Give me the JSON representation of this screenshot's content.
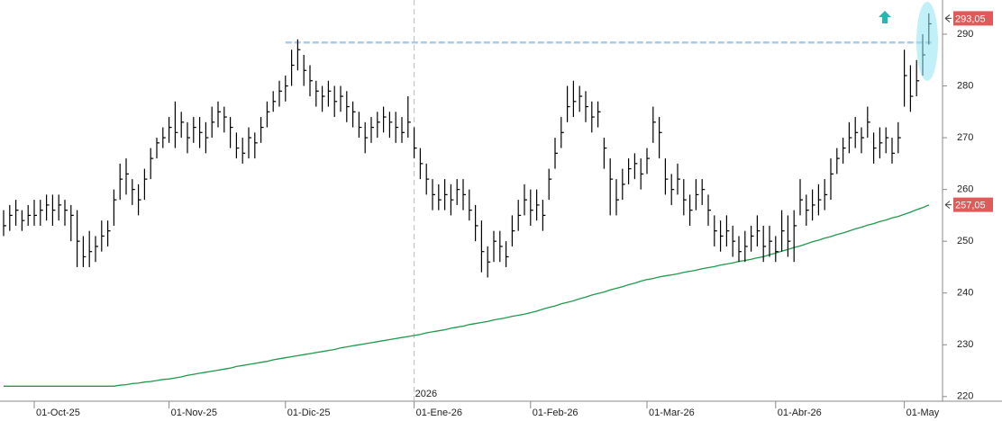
{
  "chart_data": {
    "type": "ohlc",
    "categories": [
      null,
      null,
      null,
      null,
      null,
      "01-Oct-25",
      null,
      null,
      null,
      null,
      null,
      null,
      null,
      null,
      null,
      null,
      null,
      null,
      null,
      null,
      null,
      null,
      null,
      null,
      null,
      null,
      null,
      "01-Nov-25",
      null,
      null,
      null,
      null,
      null,
      null,
      null,
      null,
      null,
      null,
      null,
      null,
      null,
      null,
      null,
      null,
      null,
      null,
      "01-Dic-25",
      null,
      null,
      null,
      null,
      null,
      null,
      null,
      null,
      null,
      null,
      null,
      null,
      null,
      null,
      null,
      null,
      null,
      null,
      null,
      null,
      "01-Ene-26",
      null,
      null,
      null,
      null,
      null,
      null,
      null,
      null,
      null,
      null,
      null,
      null,
      null,
      null,
      null,
      null,
      null,
      null,
      "01-Feb-26",
      null,
      null,
      null,
      null,
      null,
      null,
      null,
      null,
      null,
      null,
      null,
      null,
      null,
      null,
      null,
      null,
      null,
      null,
      "01-Mar-26",
      null,
      null,
      null,
      null,
      null,
      null,
      null,
      null,
      null,
      null,
      null,
      null,
      null,
      null,
      null,
      null,
      null,
      null,
      null,
      null,
      "01-Abr-26",
      null,
      null,
      null,
      null,
      null,
      null,
      null,
      null,
      null,
      null,
      null,
      null,
      null,
      null,
      null,
      null,
      null,
      null,
      null,
      null,
      "01-May",
      null,
      null,
      null,
      null
    ],
    "ohlc": {
      "color": "#000000",
      "high": [
        256,
        257,
        258,
        256,
        257,
        258,
        258,
        259,
        259,
        259,
        258,
        257,
        256,
        251,
        252,
        251,
        254,
        254,
        260,
        265,
        266,
        262,
        261,
        264,
        268,
        270,
        272,
        274,
        277,
        275,
        273,
        274,
        274,
        273,
        276,
        277,
        276,
        274,
        271,
        270,
        272,
        271,
        274,
        277,
        279,
        281,
        282,
        287,
        289,
        286,
        284,
        281,
        280,
        281,
        280,
        280,
        279,
        277,
        275,
        273,
        274,
        275,
        276,
        275,
        275,
        274,
        278,
        272,
        268,
        265,
        262,
        261,
        262,
        261,
        262,
        262,
        260,
        257,
        254,
        249,
        252,
        252,
        250,
        255,
        258,
        261,
        260,
        260,
        258,
        264,
        270,
        274,
        280,
        281,
        280,
        279,
        277,
        277,
        270,
        266,
        262,
        264,
        266,
        267,
        266,
        268,
        276,
        274,
        266,
        263,
        265,
        262,
        259,
        262,
        262,
        259,
        255,
        254,
        255,
        253,
        251,
        252,
        253,
        255,
        253,
        253,
        251,
        256,
        255,
        256,
        262,
        259,
        260,
        261,
        262,
        266,
        268,
        270,
        273,
        274,
        272,
        276,
        271,
        272,
        272,
        270,
        273,
        287,
        284,
        285,
        290,
        294
      ],
      "low": [
        251,
        252,
        253,
        252,
        253,
        253,
        253,
        254,
        253,
        254,
        253,
        250,
        245,
        245,
        245,
        246,
        248,
        249,
        253,
        258,
        259,
        257,
        255,
        258,
        262,
        266,
        268,
        269,
        268,
        270,
        267,
        269,
        268,
        267,
        270,
        272,
        271,
        268,
        266,
        265,
        266,
        266,
        269,
        272,
        275,
        276,
        277,
        280,
        283,
        280,
        278,
        276,
        275,
        276,
        274,
        275,
        273,
        272,
        270,
        267,
        269,
        270,
        271,
        270,
        269,
        269,
        270,
        266,
        262,
        259,
        256,
        256,
        256,
        255,
        257,
        256,
        254,
        250,
        244,
        243,
        246,
        246,
        245,
        249,
        252,
        255,
        253,
        254,
        252,
        258,
        264,
        268,
        273,
        274,
        275,
        273,
        271,
        272,
        264,
        255,
        255,
        258,
        261,
        262,
        260,
        263,
        269,
        266,
        259,
        257,
        259,
        255,
        253,
        256,
        257,
        253,
        249,
        248,
        249,
        247,
        246,
        246,
        248,
        249,
        246,
        247,
        246,
        248,
        247,
        246,
        255,
        253,
        254,
        255,
        256,
        258,
        263,
        265,
        267,
        268,
        267,
        270,
        265,
        266,
        267,
        265,
        267,
        276,
        275,
        278,
        282,
        288
      ],
      "close": [
        253,
        255,
        256,
        254,
        255,
        255,
        256,
        257,
        256,
        257,
        256,
        255,
        250,
        247,
        248,
        249,
        251,
        252,
        258,
        262,
        263,
        260,
        258,
        262,
        266,
        269,
        270,
        272,
        271,
        273,
        270,
        272,
        271,
        270,
        273,
        275,
        274,
        272,
        268,
        267,
        270,
        269,
        272,
        275,
        277,
        279,
        280,
        284,
        287,
        283,
        281,
        279,
        278,
        279,
        277,
        278,
        276,
        275,
        272,
        270,
        272,
        273,
        274,
        273,
        272,
        271,
        273,
        268,
        265,
        262,
        259,
        258,
        259,
        258,
        260,
        259,
        256,
        253,
        248,
        246,
        250,
        249,
        247,
        252,
        255,
        258,
        256,
        257,
        255,
        262,
        267,
        271,
        276,
        277,
        278,
        276,
        274,
        275,
        268,
        262,
        258,
        261,
        264,
        265,
        263,
        266,
        273,
        271,
        262,
        260,
        262,
        258,
        256,
        259,
        260,
        256,
        252,
        251,
        252,
        250,
        248,
        249,
        251,
        252,
        249,
        250,
        248,
        252,
        250,
        253,
        258,
        256,
        257,
        258,
        259,
        263,
        266,
        268,
        270,
        271,
        270,
        273,
        268,
        269,
        270,
        267,
        270,
        282,
        278,
        281,
        286,
        292
      ]
    },
    "moving_average": {
      "color": "#1f9a4c",
      "values": [
        222,
        222,
        222,
        222,
        222,
        222,
        222,
        222,
        222,
        222,
        222,
        222,
        222,
        222,
        222,
        222,
        222,
        222,
        222,
        222.2,
        222.3,
        222.5,
        222.6,
        222.8,
        222.9,
        223.1,
        223.3,
        223.4,
        223.6,
        223.8,
        224.1,
        224.3,
        224.5,
        224.7,
        224.9,
        225.1,
        225.3,
        225.5,
        225.8,
        226,
        226.2,
        226.4,
        226.6,
        226.8,
        227.1,
        227.3,
        227.5,
        227.7,
        227.9,
        228.1,
        228.3,
        228.5,
        228.7,
        228.9,
        229.1,
        229.4,
        229.6,
        229.8,
        230,
        230.2,
        230.4,
        230.6,
        230.8,
        231,
        231.2,
        231.4,
        231.6,
        231.8,
        232,
        232.3,
        232.5,
        232.7,
        232.9,
        233.2,
        233.4,
        233.6,
        233.9,
        234.1,
        234.3,
        234.5,
        234.8,
        235,
        235.2,
        235.5,
        235.7,
        235.9,
        236.2,
        236.5,
        236.9,
        237.2,
        237.5,
        237.9,
        238.2,
        238.5,
        238.9,
        239.2,
        239.6,
        239.9,
        240.2,
        240.6,
        240.9,
        241.2,
        241.6,
        241.9,
        242.3,
        242.6,
        242.8,
        243.1,
        243.3,
        243.5,
        243.7,
        244,
        244.2,
        244.4,
        244.7,
        244.9,
        245.1,
        245.4,
        245.6,
        245.8,
        246.1,
        246.3,
        246.5,
        246.8,
        247,
        247.4,
        247.7,
        248.1,
        248.4,
        248.8,
        249.1,
        249.5,
        249.9,
        250.2,
        250.6,
        250.9,
        251.3,
        251.6,
        252,
        252.4,
        252.7,
        253.1,
        253.4,
        253.8,
        254.1,
        254.5,
        254.8,
        255.2,
        255.6,
        256.1,
        256.5,
        257
      ]
    },
    "ylim": [
      219.1,
      296.6
    ],
    "yticks": [
      220,
      230,
      240,
      250,
      260,
      270,
      280,
      290
    ],
    "price_markers": [
      {
        "value": 293.05,
        "label": "293,05",
        "color": "#e05a5a"
      },
      {
        "value": 257.05,
        "label": "257,05",
        "color": "#e05a5a"
      }
    ],
    "hlines": [
      {
        "value": 288.4,
        "color": "#a8cdea",
        "from": "01-Dic-25"
      }
    ],
    "year_break": {
      "label": "2026",
      "at": "01-Ene-26"
    }
  }
}
